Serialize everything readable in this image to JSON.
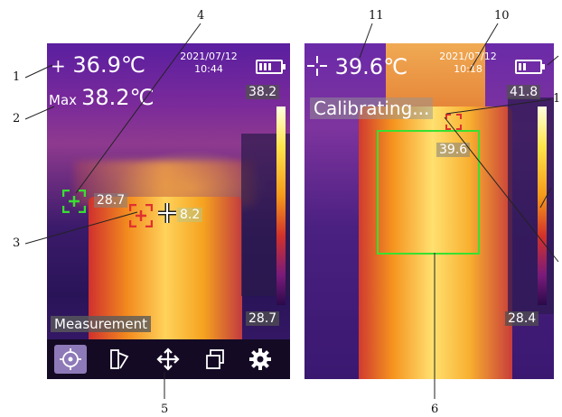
{
  "callouts": {
    "c1": "1",
    "c2": "2",
    "c3": "3",
    "c4": "4",
    "c5": "5",
    "c6": "6",
    "c10": "10",
    "c11": "11",
    "c1b": "1"
  },
  "screen1": {
    "center_temp": "36.9℃",
    "max_prefix": "Max",
    "max_temp": "38.2℃",
    "date": "2021/07/12",
    "time": "10:44",
    "scale_max": "38.2",
    "scale_min": "28.7",
    "green_point_temp": "28.7",
    "cursor_temp": "8.2",
    "mode_label": "Measurement",
    "toolbar": [
      {
        "icon": "target-icon",
        "active": true
      },
      {
        "icon": "palette-icon",
        "active": false
      },
      {
        "icon": "move-icon",
        "active": false
      },
      {
        "icon": "layers-icon",
        "active": false
      },
      {
        "icon": "gear-icon",
        "active": false
      }
    ]
  },
  "screen2": {
    "center_temp": "39.6℃",
    "date": "2021/07/12",
    "time": "10:18",
    "scale_max": "41.8",
    "scale_min": "28.4",
    "status": "Calibrating...",
    "box_temp": "39.6"
  },
  "colors": {
    "box_green": "#38e030",
    "marker_red": "#e03030",
    "toolbar_active": "#8e7ab8"
  }
}
